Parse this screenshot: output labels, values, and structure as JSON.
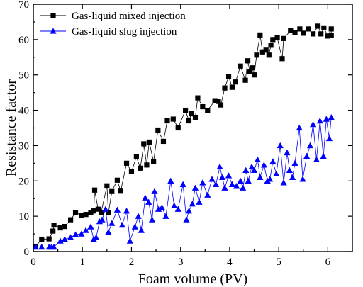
{
  "chart_data": {
    "type": "line",
    "title": "",
    "xlabel": "Foam volume (PV)",
    "ylabel": "Resistance factor",
    "xlim": [
      0,
      6.5
    ],
    "ylim": [
      0,
      70
    ],
    "xticks": [
      0,
      1,
      2,
      3,
      4,
      5,
      6
    ],
    "yticks": [
      0,
      10,
      20,
      30,
      40,
      50,
      60,
      70
    ],
    "grid": false,
    "legend_position": "top-left",
    "series": [
      {
        "name": "Gas-liquid mixed injection",
        "marker": "square",
        "color": "#000000",
        "x": [
          0.05,
          0.17,
          0.32,
          0.4,
          0.42,
          0.55,
          0.64,
          0.76,
          0.86,
          0.98,
          1.07,
          1.17,
          1.23,
          1.25,
          1.32,
          1.38,
          1.5,
          1.53,
          1.6,
          1.71,
          1.78,
          1.9,
          2.0,
          2.1,
          2.18,
          2.25,
          2.31,
          2.36,
          2.45,
          2.54,
          2.65,
          2.73,
          2.85,
          2.95,
          3.1,
          3.17,
          3.22,
          3.3,
          3.35,
          3.45,
          3.55,
          3.7,
          3.77,
          3.82,
          3.9,
          3.98,
          4.05,
          4.12,
          4.22,
          4.32,
          4.37,
          4.41,
          4.46,
          4.5,
          4.55,
          4.62,
          4.67,
          4.74,
          4.8,
          4.84,
          4.88,
          4.97,
          5.07,
          5.1,
          5.24,
          5.33,
          5.43,
          5.5,
          5.6,
          5.7,
          5.8,
          5.86,
          5.92,
          6.0,
          6.07,
          6.07
        ],
        "y": [
          1.5,
          3.5,
          3.6,
          5.8,
          7.5,
          6.7,
          7.1,
          9.0,
          11.0,
          10.3,
          10.5,
          11.0,
          11.5,
          17.4,
          12.0,
          11.0,
          18.6,
          11.0,
          17.0,
          20.2,
          17.1,
          25.0,
          22.6,
          26.8,
          23.6,
          30.5,
          24.5,
          31.0,
          25.5,
          34.4,
          31.2,
          37.0,
          37.5,
          35.0,
          40.0,
          37.0,
          39.0,
          38.0,
          43.5,
          41.0,
          40.0,
          42.7,
          42.5,
          41.5,
          46.3,
          49.5,
          46.5,
          48.0,
          52.5,
          48.5,
          54.0,
          51.0,
          52.0,
          50.0,
          55.6,
          61.3,
          56.5,
          57.0,
          55.6,
          58.4,
          60.0,
          60.5,
          54.6,
          60.3,
          62.5,
          62.0,
          63.0,
          61.8,
          63.0,
          61.6,
          63.8,
          61.6,
          63.3,
          61.0,
          63.0,
          61.2
        ]
      },
      {
        "name": "Gas-liquid slug injection",
        "marker": "triangle",
        "color": "#0000ff",
        "x": [
          0.05,
          0.17,
          0.32,
          0.37,
          0.42,
          0.55,
          0.64,
          0.76,
          0.86,
          0.98,
          1.07,
          1.17,
          1.23,
          1.28,
          1.35,
          1.4,
          1.47,
          1.53,
          1.6,
          1.71,
          1.81,
          1.9,
          1.97,
          2.07,
          2.14,
          2.2,
          2.28,
          2.35,
          2.42,
          2.47,
          2.55,
          2.62,
          2.7,
          2.8,
          2.87,
          2.95,
          3.05,
          3.12,
          3.17,
          3.24,
          3.3,
          3.38,
          3.45,
          3.55,
          3.64,
          3.72,
          3.8,
          3.85,
          3.9,
          3.98,
          4.05,
          4.14,
          4.22,
          4.27,
          4.33,
          4.38,
          4.45,
          4.5,
          4.57,
          4.62,
          4.7,
          4.77,
          4.82,
          4.88,
          4.95,
          5.03,
          5.1,
          5.17,
          5.22,
          5.28,
          5.33,
          5.42,
          5.49,
          5.57,
          5.64,
          5.7,
          5.77,
          5.84,
          5.91,
          5.97,
          6.03,
          6.07
        ],
        "y": [
          1.3,
          1.3,
          1.3,
          1.3,
          1.3,
          3.0,
          3.5,
          4.0,
          4.8,
          5.0,
          6.0,
          7.0,
          3.5,
          4.0,
          8.5,
          9.0,
          12.0,
          5.5,
          8.0,
          11.8,
          7.5,
          11.5,
          3.0,
          7.0,
          10.0,
          6.0,
          15.2,
          14.0,
          9.0,
          17.0,
          12.0,
          12.5,
          10.0,
          20.0,
          13.0,
          12.0,
          19.0,
          9.0,
          11.5,
          13.5,
          18.0,
          14.0,
          19.5,
          16.0,
          20.5,
          19.0,
          24.0,
          21.0,
          18.0,
          21.5,
          19.0,
          18.5,
          20.0,
          18.0,
          23.0,
          20.0,
          24.0,
          23.0,
          26.0,
          21.0,
          24.5,
          20.0,
          20.5,
          25.5,
          22.0,
          30.0,
          19.5,
          28.0,
          23.0,
          21.0,
          25.0,
          35.0,
          20.5,
          27.0,
          30.0,
          36.0,
          26.0,
          37.0,
          27.0,
          37.5,
          32.0,
          38.0
        ]
      }
    ]
  }
}
